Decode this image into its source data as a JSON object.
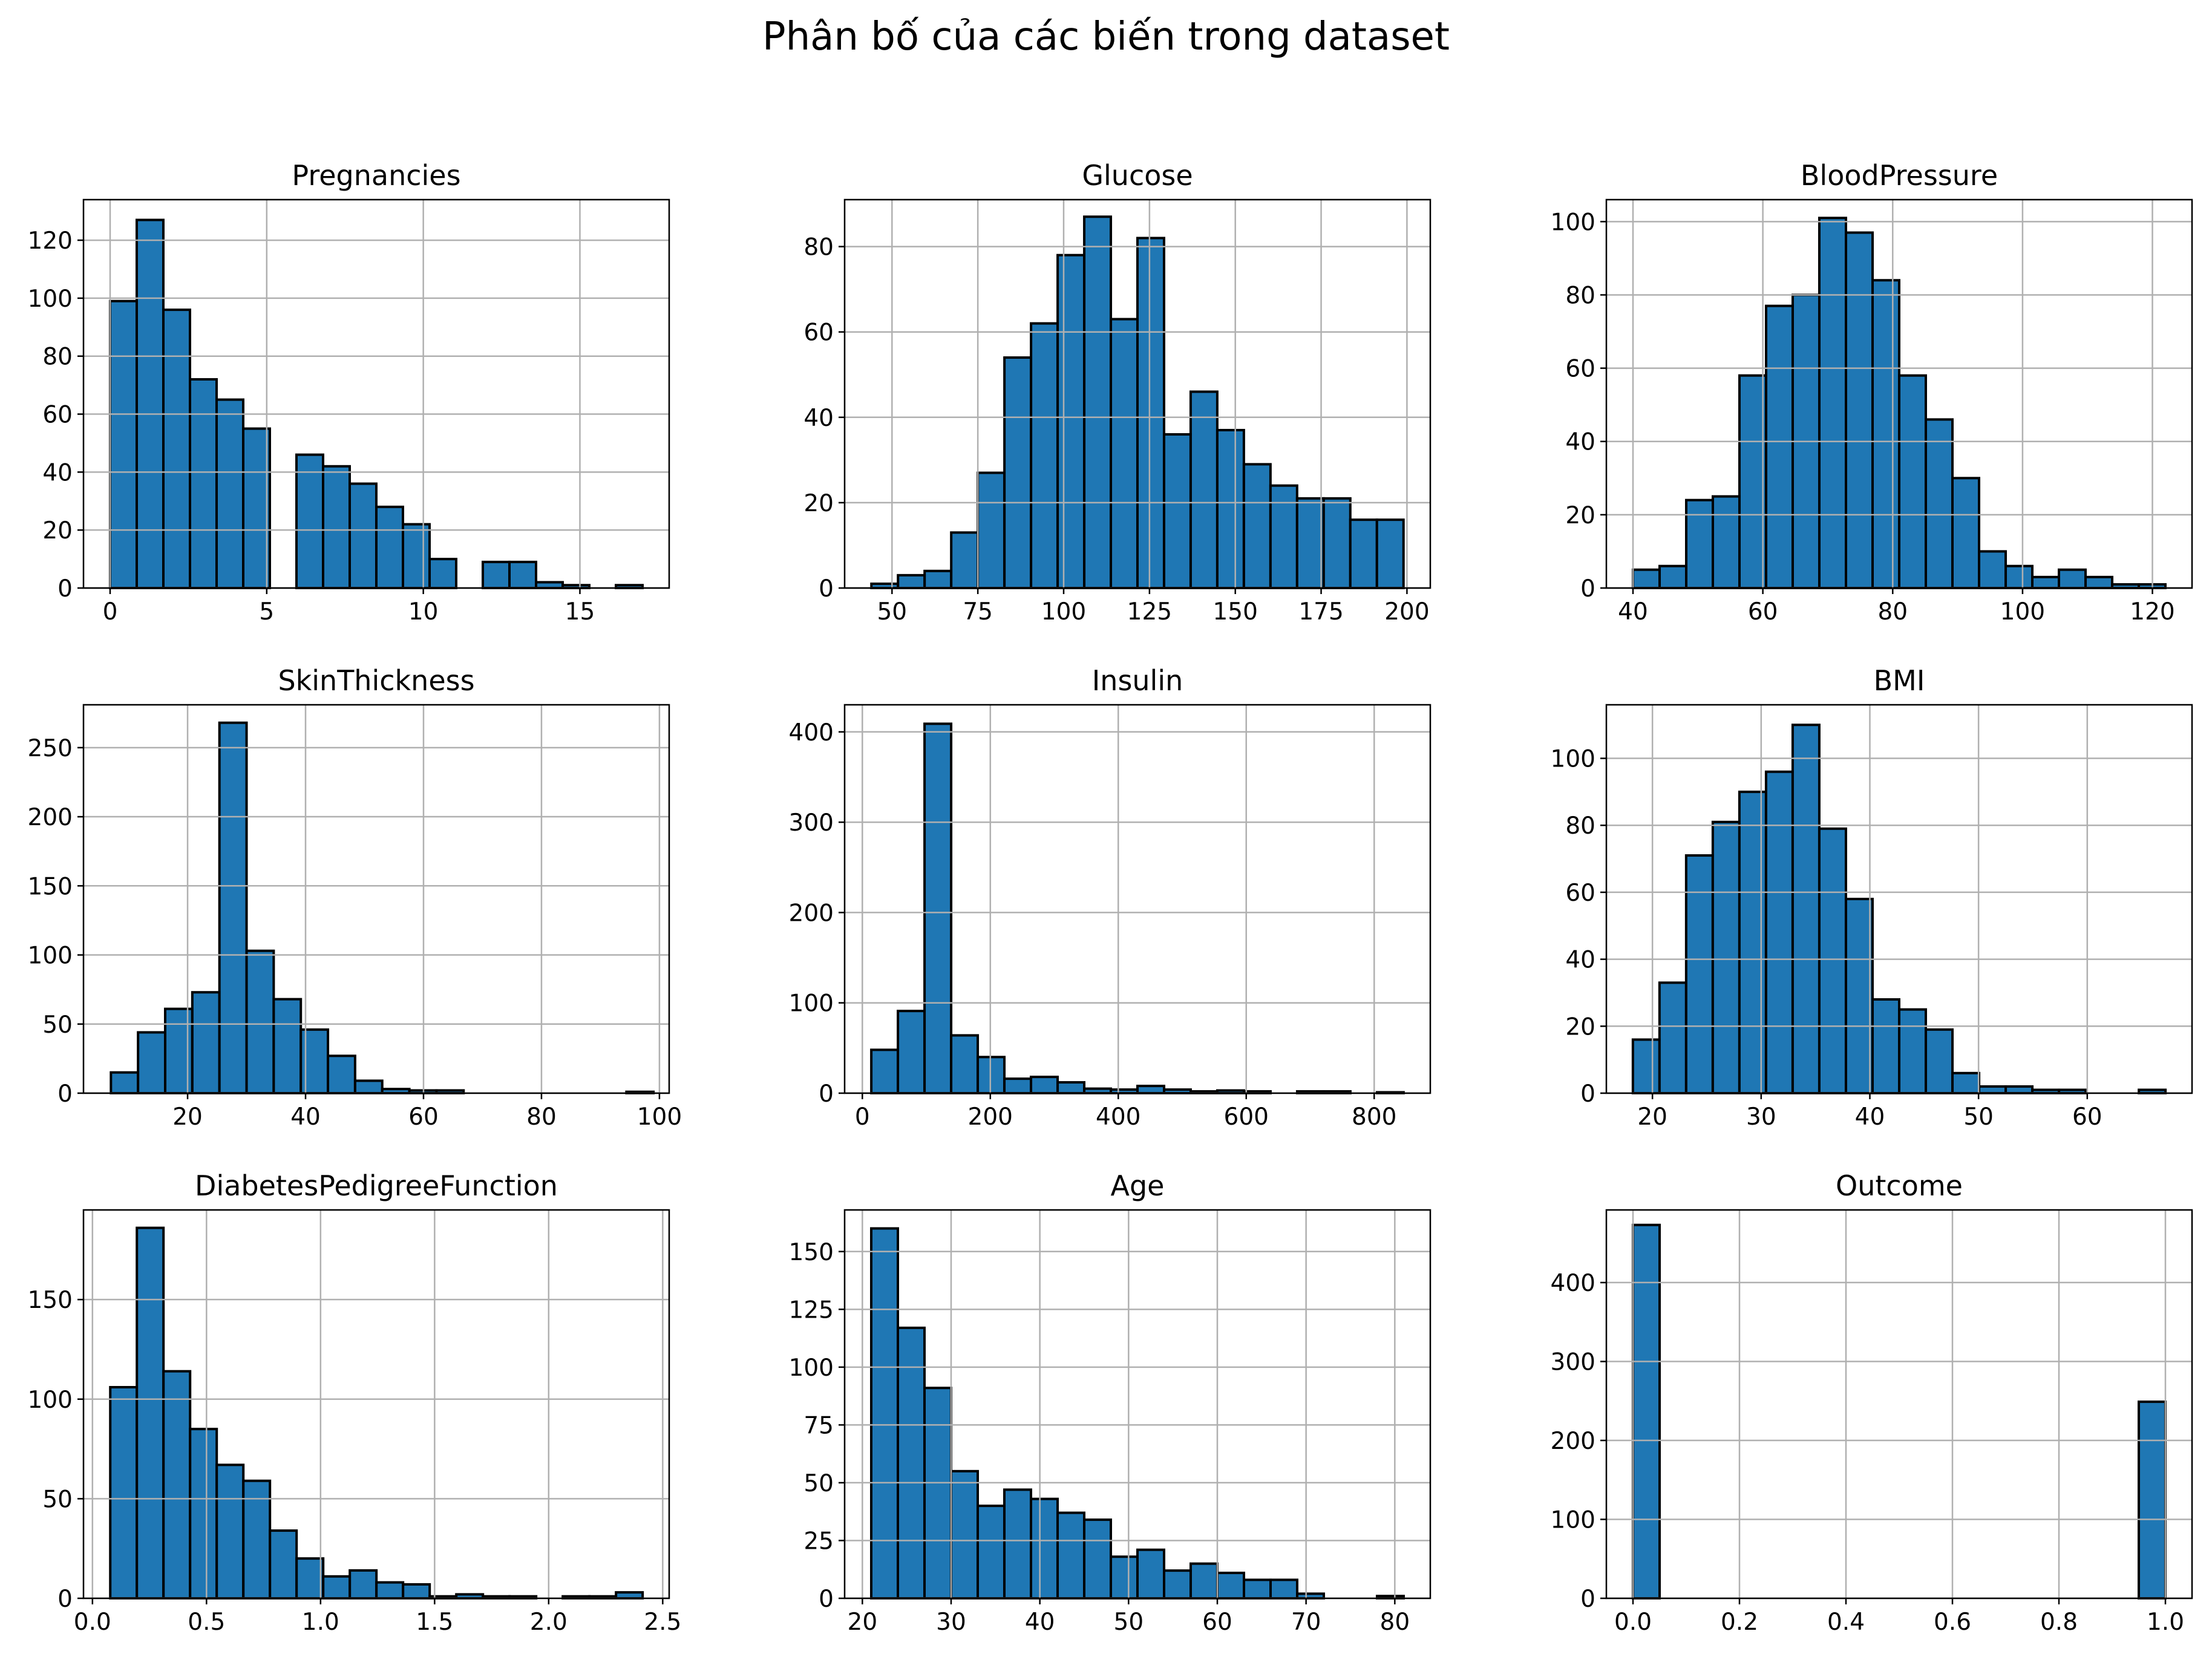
{
  "title": "Phân bố của các biến trong dataset",
  "colors": {
    "bar_fill": "#1f77b4",
    "bar_edge": "#000000",
    "grid": "#b0b0b0"
  },
  "chart_data": [
    {
      "type": "bar",
      "title": "Pregnancies",
      "xlim": [
        -0.85,
        17.85
      ],
      "ylim": [
        0,
        134
      ],
      "xticks": [
        0,
        5,
        10,
        15
      ],
      "yticks": [
        0,
        20,
        40,
        60,
        80,
        100,
        120
      ],
      "bins": [
        [
          0,
          0.85
        ],
        [
          0.85,
          1.7
        ],
        [
          1.7,
          2.55
        ],
        [
          2.55,
          3.4
        ],
        [
          3.4,
          4.25
        ],
        [
          4.25,
          5.1
        ],
        [
          5.1,
          5.95
        ],
        [
          5.95,
          6.8
        ],
        [
          6.8,
          7.65
        ],
        [
          7.65,
          8.5
        ],
        [
          8.5,
          9.35
        ],
        [
          9.35,
          10.2
        ],
        [
          10.2,
          11.05
        ],
        [
          11.05,
          11.9
        ],
        [
          11.9,
          12.75
        ],
        [
          12.75,
          13.6
        ],
        [
          13.6,
          14.45
        ],
        [
          14.45,
          15.3
        ],
        [
          15.3,
          16.15
        ],
        [
          16.15,
          17
        ]
      ],
      "values": [
        99,
        127,
        96,
        72,
        65,
        55,
        0,
        46,
        42,
        36,
        28,
        22,
        10,
        0,
        9,
        9,
        2,
        1,
        0,
        1
      ],
      "grid": true,
      "legend": "none"
    },
    {
      "type": "bar",
      "title": "Glucose",
      "xlim": [
        36.2,
        206.8
      ],
      "ylim": [
        0,
        91
      ],
      "xticks": [
        50,
        75,
        100,
        125,
        150,
        175,
        200
      ],
      "yticks": [
        0,
        20,
        40,
        60,
        80
      ],
      "bins": [
        [
          44,
          51.75
        ],
        [
          51.75,
          59.5
        ],
        [
          59.5,
          67.25
        ],
        [
          67.25,
          75
        ],
        [
          75,
          82.75
        ],
        [
          82.75,
          90.5
        ],
        [
          90.5,
          98.25
        ],
        [
          98.25,
          106
        ],
        [
          106,
          113.75
        ],
        [
          113.75,
          121.5
        ],
        [
          121.5,
          129.25
        ],
        [
          129.25,
          137
        ],
        [
          137,
          144.75
        ],
        [
          144.75,
          152.5
        ],
        [
          152.5,
          160.25
        ],
        [
          160.25,
          168
        ],
        [
          168,
          175.75
        ],
        [
          175.75,
          183.5
        ],
        [
          183.5,
          191.25
        ],
        [
          191.25,
          199
        ]
      ],
      "values": [
        1,
        3,
        4,
        13,
        27,
        54,
        62,
        78,
        87,
        63,
        82,
        36,
        46,
        37,
        29,
        24,
        21,
        21,
        16,
        16
      ],
      "grid": true,
      "legend": "none"
    },
    {
      "type": "bar",
      "title": "BloodPressure",
      "xlim": [
        35.9,
        126.1
      ],
      "ylim": [
        0,
        106
      ],
      "xticks": [
        40,
        60,
        80,
        100,
        120
      ],
      "yticks": [
        0,
        20,
        40,
        60,
        80,
        100
      ],
      "bins": [
        [
          40,
          44.1
        ],
        [
          44.1,
          48.2
        ],
        [
          48.2,
          52.3
        ],
        [
          52.3,
          56.4
        ],
        [
          56.4,
          60.5
        ],
        [
          60.5,
          64.6
        ],
        [
          64.6,
          68.7
        ],
        [
          68.7,
          72.8
        ],
        [
          72.8,
          76.9
        ],
        [
          76.9,
          81
        ],
        [
          81,
          85.1
        ],
        [
          85.1,
          89.2
        ],
        [
          89.2,
          93.3
        ],
        [
          93.3,
          97.4
        ],
        [
          97.4,
          101.5
        ],
        [
          101.5,
          105.6
        ],
        [
          105.6,
          109.7
        ],
        [
          109.7,
          113.8
        ],
        [
          113.8,
          117.9
        ],
        [
          117.9,
          122
        ]
      ],
      "values": [
        5,
        6,
        24,
        25,
        58,
        77,
        80,
        101,
        97,
        84,
        58,
        46,
        30,
        10,
        6,
        3,
        5,
        3,
        1,
        1
      ],
      "grid": true,
      "legend": "none"
    },
    {
      "type": "bar",
      "title": "SkinThickness",
      "xlim": [
        2.35,
        101.65
      ],
      "ylim": [
        0,
        281
      ],
      "xticks": [
        20,
        40,
        60,
        80,
        100
      ],
      "yticks": [
        0,
        50,
        100,
        150,
        200,
        250
      ],
      "bins": [
        [
          7,
          11.6
        ],
        [
          11.6,
          16.2
        ],
        [
          16.2,
          20.8
        ],
        [
          20.8,
          25.4
        ],
        [
          25.4,
          30
        ],
        [
          30,
          34.6
        ],
        [
          34.6,
          39.2
        ],
        [
          39.2,
          43.8
        ],
        [
          43.8,
          48.4
        ],
        [
          48.4,
          53
        ],
        [
          53,
          57.6
        ],
        [
          57.6,
          62.2
        ],
        [
          62.2,
          66.8
        ],
        [
          66.8,
          71.4
        ],
        [
          71.4,
          76
        ],
        [
          76,
          80.6
        ],
        [
          80.6,
          85.2
        ],
        [
          85.2,
          89.8
        ],
        [
          89.8,
          94.4
        ],
        [
          94.4,
          99
        ]
      ],
      "values": [
        15,
        44,
        61,
        73,
        268,
        103,
        68,
        46,
        27,
        9,
        3,
        2,
        2,
        0,
        0,
        0,
        0,
        0,
        0,
        1
      ],
      "grid": true,
      "legend": "none"
    },
    {
      "type": "bar",
      "title": "Insulin",
      "xlim": [
        -27.7,
        887.7
      ],
      "ylim": [
        0,
        430
      ],
      "xticks": [
        0,
        200,
        400,
        600,
        800
      ],
      "yticks": [
        0,
        100,
        200,
        300,
        400
      ],
      "bins": [
        [
          14,
          55.6
        ],
        [
          55.6,
          97.2
        ],
        [
          97.2,
          138.8
        ],
        [
          138.8,
          180.4
        ],
        [
          180.4,
          222
        ],
        [
          222,
          263.6
        ],
        [
          263.6,
          305.2
        ],
        [
          305.2,
          346.8
        ],
        [
          346.8,
          388.4
        ],
        [
          388.4,
          430
        ],
        [
          430,
          471.6
        ],
        [
          471.6,
          513.2
        ],
        [
          513.2,
          554.8
        ],
        [
          554.8,
          596.4
        ],
        [
          596.4,
          638
        ],
        [
          638,
          679.6
        ],
        [
          679.6,
          721.2
        ],
        [
          721.2,
          762.8
        ],
        [
          762.8,
          804.4
        ],
        [
          804.4,
          846
        ]
      ],
      "values": [
        48,
        91,
        409,
        64,
        40,
        16,
        18,
        12,
        5,
        4,
        8,
        4,
        2,
        3,
        2,
        0,
        2,
        2,
        0,
        1
      ],
      "grid": true,
      "legend": "none"
    },
    {
      "type": "bar",
      "title": "BMI",
      "xlim": [
        15.76,
        69.64
      ],
      "ylim": [
        0,
        116
      ],
      "xticks": [
        20,
        30,
        40,
        50,
        60
      ],
      "yticks": [
        0,
        20,
        40,
        60,
        80,
        100
      ],
      "bins": [
        [
          18.2,
          20.65
        ],
        [
          20.65,
          23.1
        ],
        [
          23.1,
          25.55
        ],
        [
          25.55,
          28
        ],
        [
          28,
          30.45
        ],
        [
          30.45,
          32.9
        ],
        [
          32.9,
          35.35
        ],
        [
          35.35,
          37.8
        ],
        [
          37.8,
          40.25
        ],
        [
          40.25,
          42.7
        ],
        [
          42.7,
          45.15
        ],
        [
          45.15,
          47.6
        ],
        [
          47.6,
          50.05
        ],
        [
          50.05,
          52.5
        ],
        [
          52.5,
          54.95
        ],
        [
          54.95,
          57.4
        ],
        [
          57.4,
          59.85
        ],
        [
          59.85,
          62.3
        ],
        [
          62.3,
          64.75
        ],
        [
          64.75,
          67.2
        ]
      ],
      "values": [
        16,
        33,
        71,
        81,
        90,
        96,
        110,
        79,
        58,
        28,
        25,
        19,
        6,
        2,
        2,
        1,
        1,
        0,
        0,
        1
      ],
      "grid": true,
      "legend": "none"
    },
    {
      "type": "bar",
      "title": "DiabetesPedigreeFunction",
      "xlim": [
        -0.0393,
        2.5283
      ],
      "ylim": [
        0,
        195
      ],
      "xticks": [
        0.0,
        0.5,
        1.0,
        1.5,
        2.0,
        2.5
      ],
      "yticks": [
        0,
        50,
        100,
        150
      ],
      "bins": [
        [
          0.078,
          0.1947
        ],
        [
          0.1947,
          0.3114
        ],
        [
          0.3114,
          0.4281
        ],
        [
          0.4281,
          0.5448
        ],
        [
          0.5448,
          0.6615
        ],
        [
          0.6615,
          0.7782
        ],
        [
          0.7782,
          0.8949
        ],
        [
          0.8949,
          1.0116
        ],
        [
          1.0116,
          1.1283
        ],
        [
          1.1283,
          1.245
        ],
        [
          1.245,
          1.3617
        ],
        [
          1.3617,
          1.4784
        ],
        [
          1.4784,
          1.5951
        ],
        [
          1.5951,
          1.7118
        ],
        [
          1.7118,
          1.8285
        ],
        [
          1.8285,
          1.9452
        ],
        [
          1.9452,
          2.0619
        ],
        [
          2.0619,
          2.1786
        ],
        [
          2.1786,
          2.2953
        ],
        [
          2.2953,
          2.412
        ]
      ],
      "values": [
        106,
        186,
        114,
        85,
        67,
        59,
        34,
        20,
        11,
        14,
        8,
        7,
        1,
        2,
        1,
        1,
        0,
        1,
        1,
        3
      ],
      "grid": true,
      "legend": "none"
    },
    {
      "type": "bar",
      "title": "Age",
      "xlim": [
        18,
        84
      ],
      "ylim": [
        0,
        168
      ],
      "xticks": [
        20,
        30,
        40,
        50,
        60,
        70,
        80
      ],
      "yticks": [
        0,
        25,
        50,
        75,
        100,
        125,
        150
      ],
      "bins": [
        [
          21,
          24
        ],
        [
          24,
          27
        ],
        [
          27,
          30
        ],
        [
          30,
          33
        ],
        [
          33,
          36
        ],
        [
          36,
          39
        ],
        [
          39,
          42
        ],
        [
          42,
          45
        ],
        [
          45,
          48
        ],
        [
          48,
          51
        ],
        [
          51,
          54
        ],
        [
          54,
          57
        ],
        [
          57,
          60
        ],
        [
          60,
          63
        ],
        [
          63,
          66
        ],
        [
          66,
          69
        ],
        [
          69,
          72
        ],
        [
          72,
          75
        ],
        [
          75,
          78
        ],
        [
          78,
          81
        ]
      ],
      "values": [
        160,
        117,
        91,
        55,
        40,
        47,
        43,
        37,
        34,
        18,
        21,
        12,
        15,
        11,
        8,
        8,
        2,
        0,
        0,
        1
      ],
      "grid": true,
      "legend": "none"
    },
    {
      "type": "bar",
      "title": "Outcome",
      "xlim": [
        -0.05,
        1.05
      ],
      "ylim": [
        0,
        492
      ],
      "xticks": [
        0.0,
        0.2,
        0.4,
        0.6,
        0.8,
        1.0
      ],
      "yticks": [
        0,
        100,
        200,
        300,
        400
      ],
      "bins": [
        [
          0,
          0.05
        ],
        [
          0.05,
          0.1
        ],
        [
          0.1,
          0.15
        ],
        [
          0.15,
          0.2
        ],
        [
          0.2,
          0.25
        ],
        [
          0.25,
          0.3
        ],
        [
          0.3,
          0.35
        ],
        [
          0.35,
          0.4
        ],
        [
          0.4,
          0.45
        ],
        [
          0.45,
          0.5
        ],
        [
          0.5,
          0.55
        ],
        [
          0.55,
          0.6
        ],
        [
          0.6,
          0.65
        ],
        [
          0.65,
          0.7
        ],
        [
          0.7,
          0.75
        ],
        [
          0.75,
          0.8
        ],
        [
          0.8,
          0.85
        ],
        [
          0.85,
          0.9
        ],
        [
          0.9,
          0.95
        ],
        [
          0.95,
          1.0
        ]
      ],
      "values": [
        473,
        0,
        0,
        0,
        0,
        0,
        0,
        0,
        0,
        0,
        0,
        0,
        0,
        0,
        0,
        0,
        0,
        0,
        0,
        249
      ],
      "grid": true,
      "legend": "none"
    }
  ]
}
